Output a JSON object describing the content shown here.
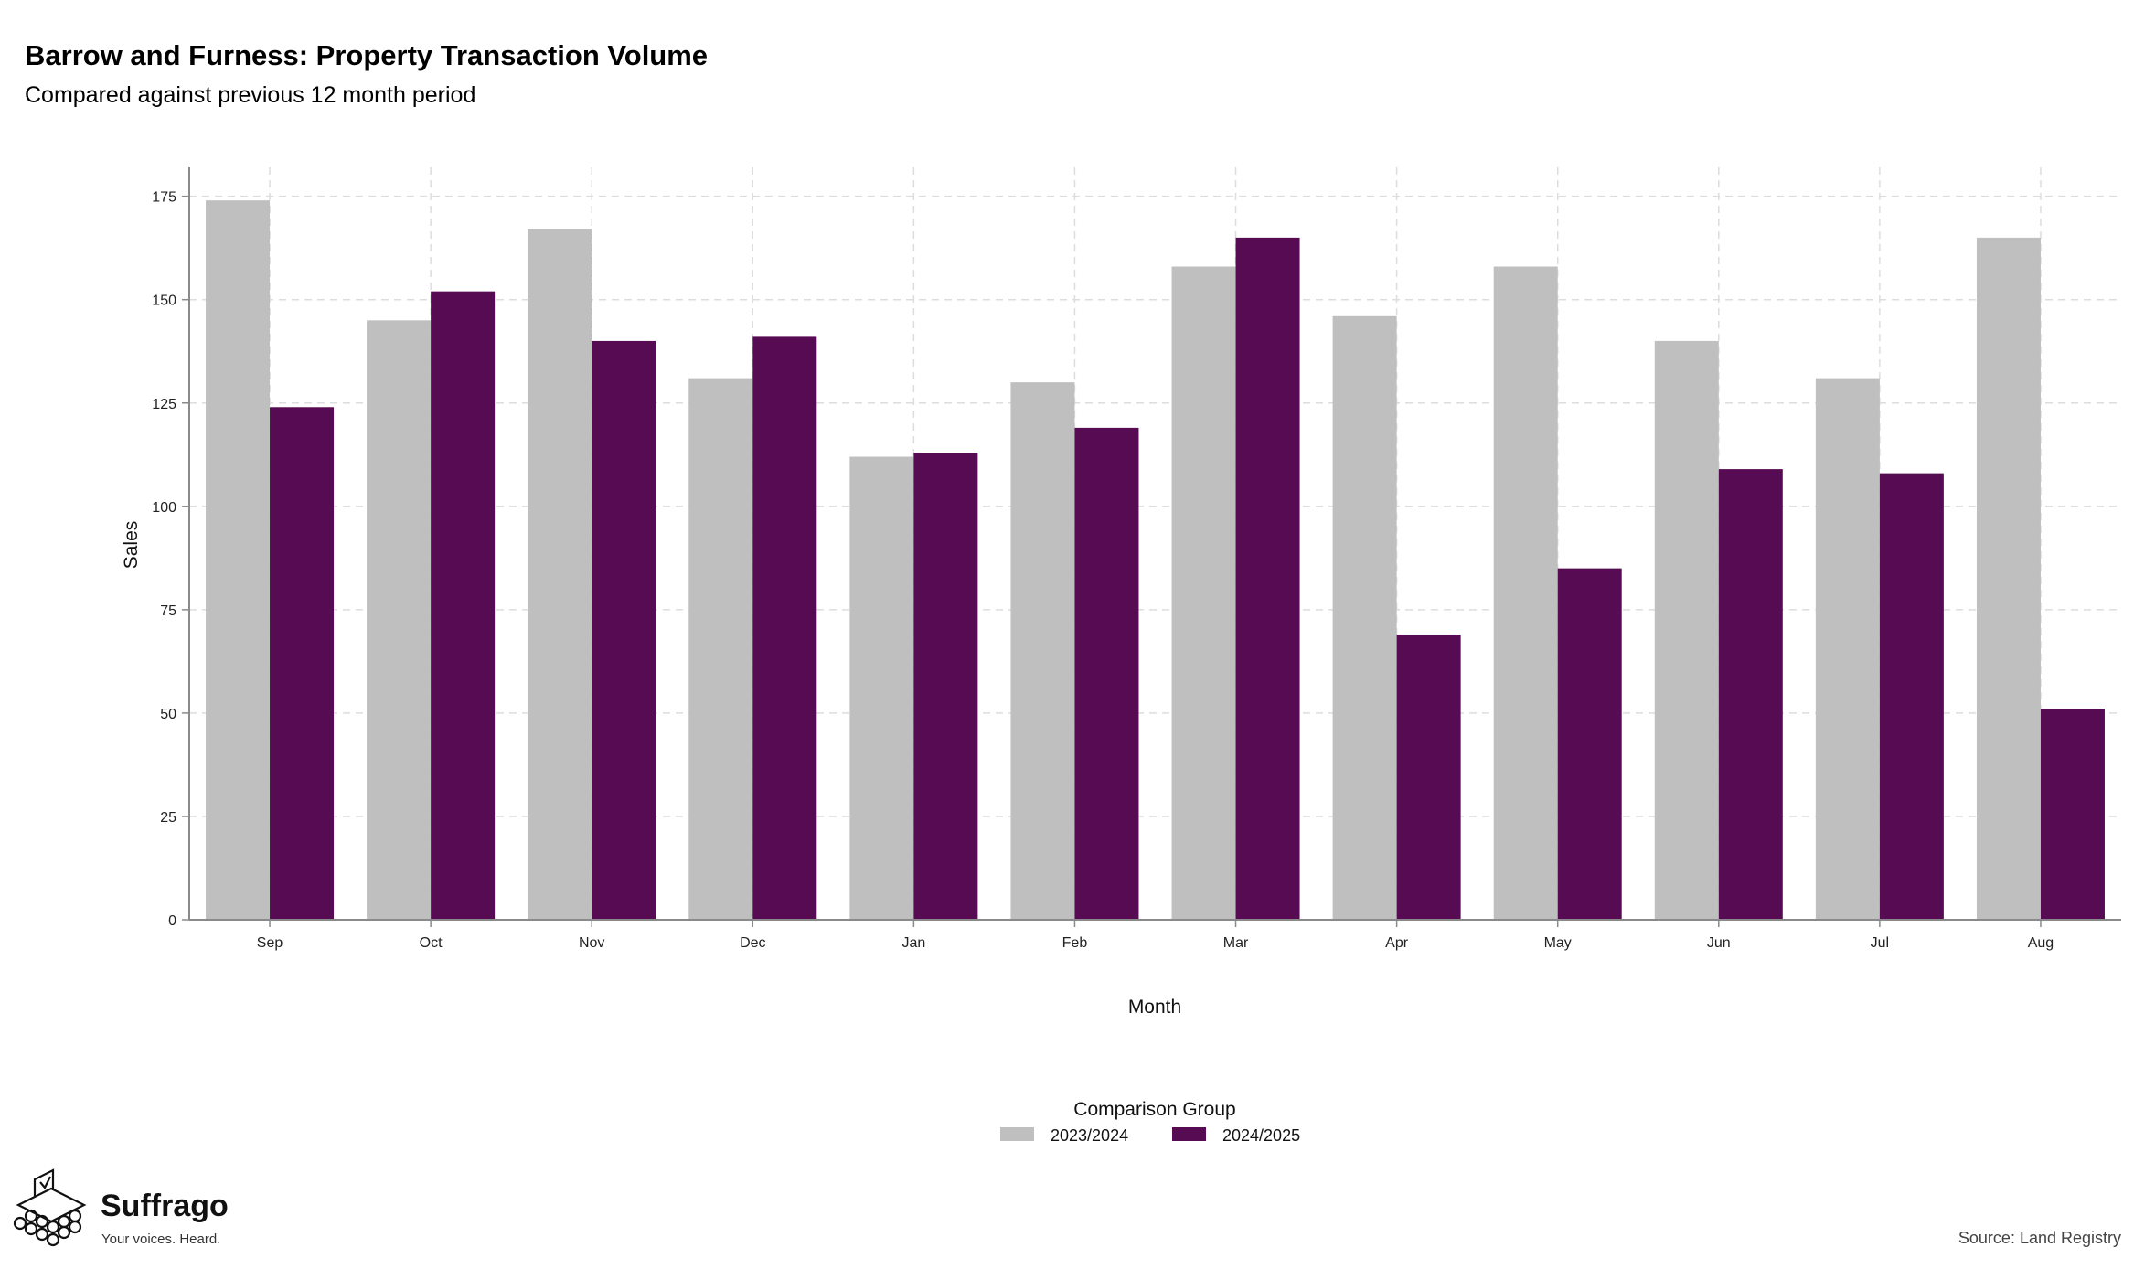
{
  "chart_data": {
    "type": "bar",
    "title": "Barrow and Furness: Property Transaction Volume",
    "subtitle": "Compared against previous 12 month period",
    "xlabel": "Month",
    "ylabel": "Sales",
    "ylim": [
      0,
      182
    ],
    "yticks": [
      0,
      25,
      50,
      75,
      100,
      125,
      150,
      175
    ],
    "grid": true,
    "legend": {
      "title": "Comparison Group",
      "position": "bottom"
    },
    "categories": [
      "Sep",
      "Oct",
      "Nov",
      "Dec",
      "Jan",
      "Feb",
      "Mar",
      "Apr",
      "May",
      "Jun",
      "Jul",
      "Aug"
    ],
    "series": [
      {
        "name": "2023/2024",
        "color": "#bfbfbf",
        "values": [
          174,
          145,
          167,
          131,
          112,
          130,
          158,
          146,
          158,
          140,
          131,
          165
        ]
      },
      {
        "name": "2024/2025",
        "color": "#560b52",
        "values": [
          124,
          152,
          140,
          141,
          113,
          119,
          165,
          69,
          85,
          109,
          108,
          51
        ]
      }
    ]
  },
  "branding": {
    "name": "Suffrago",
    "tagline": "Your voices. Heard.",
    "logo_icon": "ballot-box-icon"
  },
  "source": "Source: Land Registry"
}
